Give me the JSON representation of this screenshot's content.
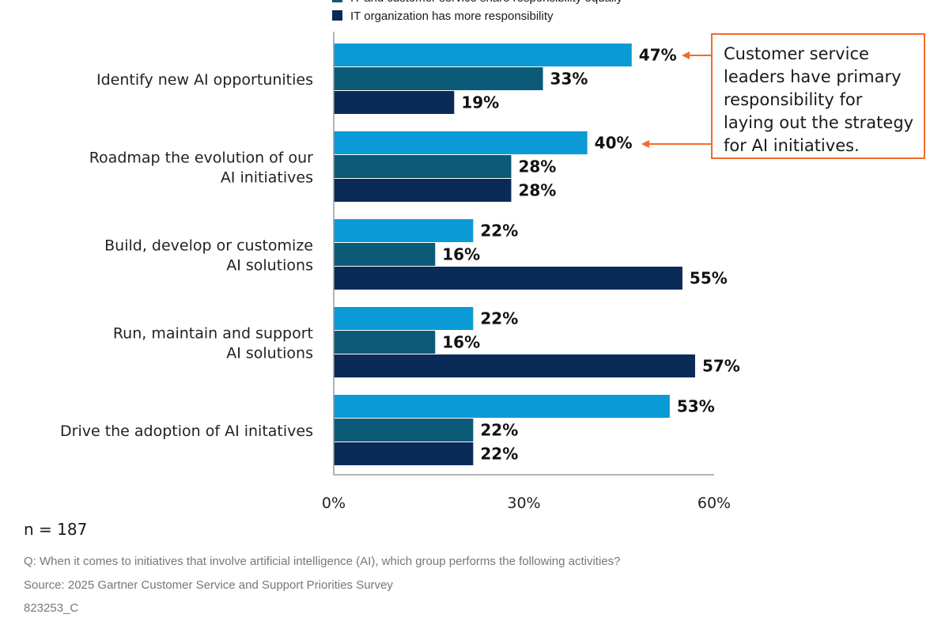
{
  "legend": {
    "entries": [
      {
        "label": "IT and customer service share responsibility equally",
        "color": "#0b5a77"
      },
      {
        "label": "IT organization has more responsibility",
        "color": "#0a2a57"
      }
    ]
  },
  "callout": {
    "text": "Customer service leaders have primary responsibility for laying out the strategy for AI initiatives.",
    "color": "#f26b2a"
  },
  "chart_data": {
    "type": "bar",
    "orientation": "horizontal",
    "categories": [
      [
        "Identify new AI opportunities"
      ],
      [
        "Roadmap the evolution of our",
        "AI initiatives"
      ],
      [
        "Build, develop or customize",
        "AI solutions"
      ],
      [
        "Run, maintain and support",
        "AI solutions"
      ],
      [
        "Drive the adoption of AI initatives"
      ]
    ],
    "series": [
      {
        "color": "#0a9ad6",
        "values": [
          47,
          40,
          22,
          22,
          53
        ]
      },
      {
        "name": "IT and customer service share responsibility equally",
        "color": "#0b5a77",
        "values": [
          33,
          28,
          16,
          16,
          22
        ]
      },
      {
        "name": "IT organization has more responsibility",
        "color": "#0a2a57",
        "values": [
          19,
          28,
          55,
          57,
          22
        ]
      }
    ],
    "value_suffix": "%",
    "xlim": [
      0,
      60
    ],
    "xticks": [
      0,
      30,
      60
    ],
    "xtick_labels": [
      "0%",
      "30%",
      "60%"
    ],
    "grid": false,
    "legend_position": "top"
  },
  "footer": {
    "sample_size": "n = 187",
    "question": "Q: When it comes to initiatives that involve artificial intelligence (AI), which group performs the following activities?",
    "source": "Source: 2025 Gartner Customer Service and Support Priorities Survey",
    "id": "823253_C"
  }
}
